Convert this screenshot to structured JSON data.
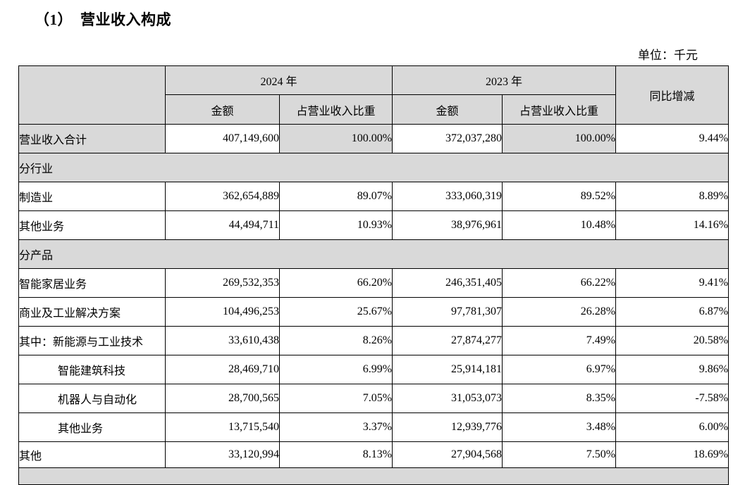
{
  "page": {
    "title": "（1）　营业收入构成",
    "unit_label": "单位：千元"
  },
  "colors": {
    "cell_shading": "#d9d9d9",
    "border": "#000000",
    "text": "#000000",
    "page_background": "#ffffff"
  },
  "table": {
    "header": {
      "corner": "",
      "year_2024": "2024 年",
      "year_2023": "2023 年",
      "yoy": "同比增减",
      "sub": [
        "金额",
        "占营业收入比重"
      ]
    },
    "rows": [
      {
        "type": "data",
        "label": "营业收入合计",
        "indent": false,
        "shaded": [
          true,
          false,
          true,
          false,
          true,
          false
        ],
        "values": [
          "407,149,600",
          "100.00%",
          "372,037,280",
          "100.00%",
          "9.44%"
        ]
      },
      {
        "type": "section",
        "label": "分行业"
      },
      {
        "type": "data",
        "label": "制造业",
        "indent": false,
        "values": [
          "362,654,889",
          "89.07%",
          "333,060,319",
          "89.52%",
          "8.89%"
        ]
      },
      {
        "type": "data",
        "label": "其他业务",
        "indent": false,
        "values": [
          "44,494,711",
          "10.93%",
          "38,976,961",
          "10.48%",
          "14.16%"
        ]
      },
      {
        "type": "section",
        "label": "分产品"
      },
      {
        "type": "data",
        "label": "智能家居业务",
        "indent": false,
        "values": [
          "269,532,353",
          "66.20%",
          "246,351,405",
          "66.22%",
          "9.41%"
        ]
      },
      {
        "type": "data",
        "label": "商业及工业解决方案",
        "indent": false,
        "values": [
          "104,496,253",
          "25.67%",
          "97,781,307",
          "26.28%",
          "6.87%"
        ]
      },
      {
        "type": "data",
        "label": "其中：新能源与工业技术",
        "indent": false,
        "values": [
          "33,610,438",
          "8.26%",
          "27,874,277",
          "7.49%",
          "20.58%"
        ]
      },
      {
        "type": "data",
        "label": "智能建筑科技",
        "indent": true,
        "values": [
          "28,469,710",
          "6.99%",
          "25,914,181",
          "6.97%",
          "9.86%"
        ]
      },
      {
        "type": "data",
        "label": "机器人与自动化",
        "indent": true,
        "values": [
          "28,700,565",
          "7.05%",
          "31,053,073",
          "8.35%",
          "-7.58%"
        ]
      },
      {
        "type": "data",
        "label": "其他业务",
        "indent": true,
        "values": [
          "13,715,540",
          "3.37%",
          "12,939,776",
          "3.48%",
          "6.00%"
        ]
      },
      {
        "type": "data",
        "label": "其他",
        "indent": false,
        "values": [
          "33,120,994",
          "8.13%",
          "27,904,568",
          "7.50%",
          "18.69%"
        ]
      },
      {
        "type": "section",
        "label": "",
        "cut_off": true
      }
    ]
  }
}
